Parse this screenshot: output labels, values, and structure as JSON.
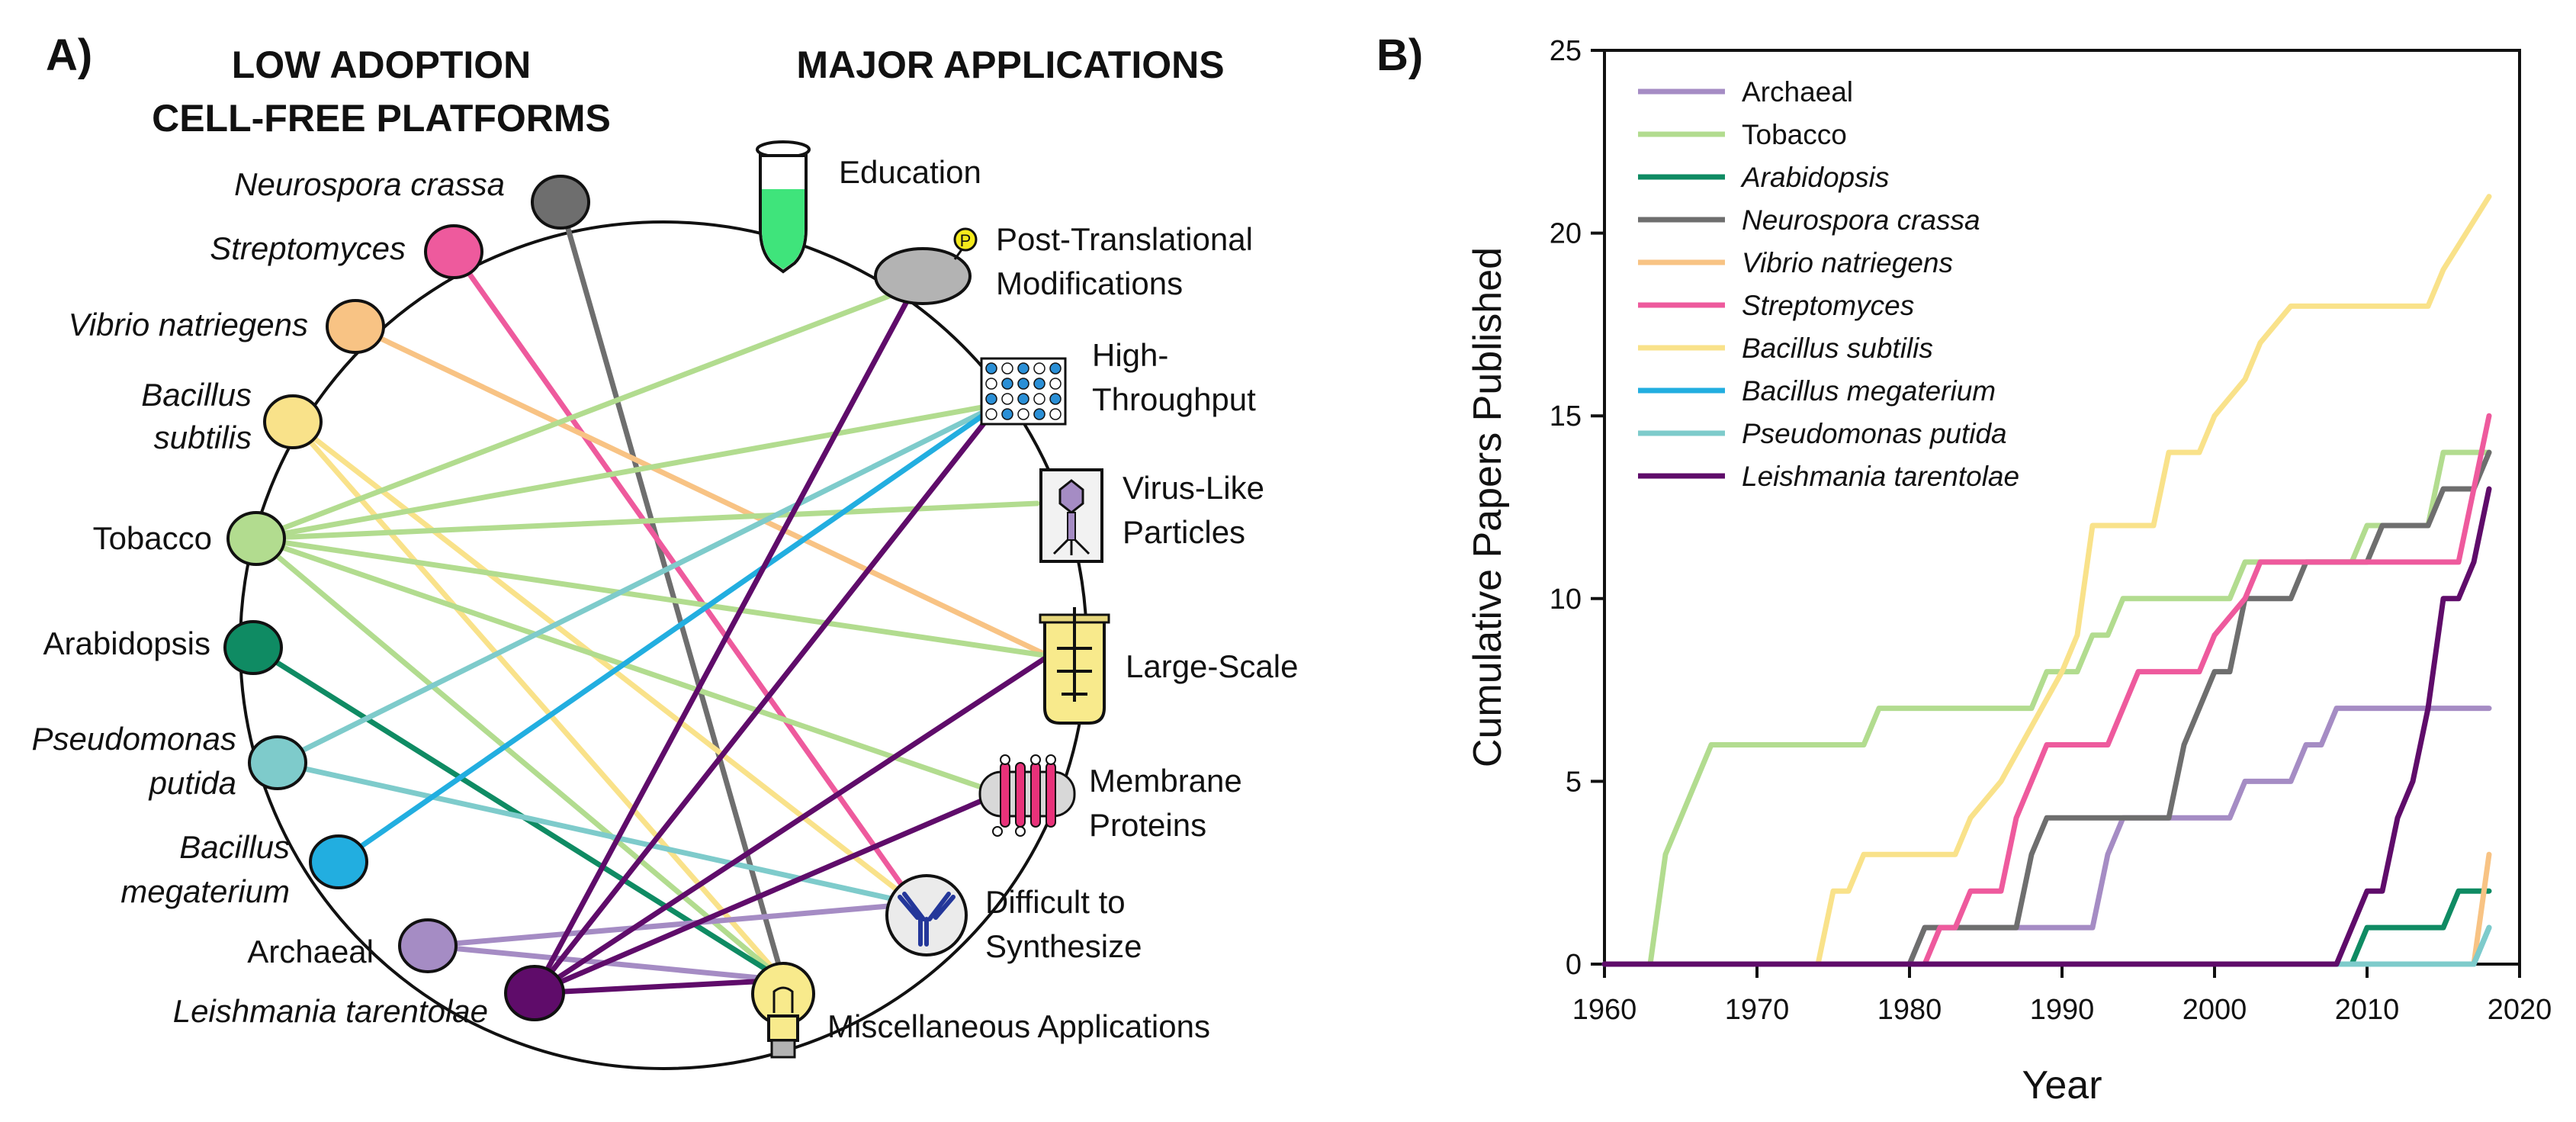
{
  "panel_a": {
    "label": "A)",
    "header_left": [
      "LOW ADOPTION",
      "CELL-FREE PLATFORMS"
    ],
    "header_right": "MAJOR APPLICATIONS",
    "platforms": [
      {
        "key": "neurospora",
        "lines": [
          "Neurospora crassa"
        ],
        "italic": true,
        "color": "#6e6e6e"
      },
      {
        "key": "streptomyces",
        "lines": [
          "Streptomyces"
        ],
        "italic": true,
        "color": "#ee5a9d"
      },
      {
        "key": "vibrio",
        "lines": [
          "Vibrio natriegens"
        ],
        "italic": true,
        "color": "#f8c384"
      },
      {
        "key": "bsubtilis",
        "lines": [
          "Bacillus",
          "subtilis"
        ],
        "italic": true,
        "color": "#f9e28a"
      },
      {
        "key": "tobacco",
        "lines": [
          "Tobacco"
        ],
        "italic": false,
        "color": "#b2dc8f"
      },
      {
        "key": "arabidopsis",
        "lines": [
          "Arabidopsis"
        ],
        "italic": false,
        "color": "#0f8b63"
      },
      {
        "key": "pputida",
        "lines": [
          "Pseudomonas",
          "putida"
        ],
        "italic": true,
        "color": "#7ecbcb"
      },
      {
        "key": "bmegaterium",
        "lines": [
          "Bacillus",
          "megaterium"
        ],
        "italic": true,
        "color": "#22aee0"
      },
      {
        "key": "archaeal",
        "lines": [
          "Archaeal"
        ],
        "italic": false,
        "color": "#a58cc4"
      },
      {
        "key": "leishmania",
        "lines": [
          "Leishmania tarentolae"
        ],
        "italic": true,
        "color": "#5f0c6a"
      }
    ],
    "applications": [
      {
        "key": "education",
        "lines": [
          "Education"
        ]
      },
      {
        "key": "ptm",
        "lines": [
          "Post-Translational",
          "Modifications"
        ]
      },
      {
        "key": "htp",
        "lines": [
          "High-",
          "Throughput"
        ]
      },
      {
        "key": "vlp",
        "lines": [
          "Virus-Like",
          "Particles"
        ]
      },
      {
        "key": "largescale",
        "lines": [
          "Large-Scale"
        ]
      },
      {
        "key": "membrane",
        "lines": [
          "Membrane",
          "Proteins"
        ]
      },
      {
        "key": "difficult",
        "lines": [
          "Difficult to",
          "Synthesize"
        ]
      },
      {
        "key": "misc",
        "lines": [
          "Miscellaneous Applications"
        ]
      }
    ],
    "ptm_badge": "P",
    "connections": [
      [
        "neurospora",
        "misc"
      ],
      [
        "streptomyces",
        "difficult"
      ],
      [
        "vibrio",
        "largescale"
      ],
      [
        "bsubtilis",
        "difficult"
      ],
      [
        "bsubtilis",
        "misc"
      ],
      [
        "tobacco",
        "ptm"
      ],
      [
        "tobacco",
        "htp"
      ],
      [
        "tobacco",
        "vlp"
      ],
      [
        "tobacco",
        "largescale"
      ],
      [
        "tobacco",
        "membrane"
      ],
      [
        "tobacco",
        "misc"
      ],
      [
        "arabidopsis",
        "misc"
      ],
      [
        "pputida",
        "htp"
      ],
      [
        "pputida",
        "difficult"
      ],
      [
        "bmegaterium",
        "htp"
      ],
      [
        "archaeal",
        "difficult"
      ],
      [
        "archaeal",
        "misc"
      ],
      [
        "leishmania",
        "ptm"
      ],
      [
        "leishmania",
        "htp"
      ],
      [
        "leishmania",
        "largescale"
      ],
      [
        "leishmania",
        "membrane"
      ],
      [
        "leishmania",
        "misc"
      ]
    ]
  },
  "panel_b": {
    "label": "B)"
  },
  "chart_data": {
    "type": "line",
    "title": "",
    "xlabel": "Year",
    "ylabel": "Cumulative Papers Published",
    "xlim": [
      1960,
      2020
    ],
    "ylim": [
      0,
      25
    ],
    "xticks": [
      1960,
      1970,
      1980,
      1990,
      2000,
      2010,
      2020
    ],
    "yticks": [
      0,
      5,
      10,
      15,
      20,
      25
    ],
    "legend_position": "top-left",
    "series": [
      {
        "name": "Archaeal",
        "italic": false,
        "color": "#a58cc4",
        "points": [
          [
            1960,
            0
          ],
          [
            1980,
            0
          ],
          [
            1981,
            1
          ],
          [
            1992,
            1
          ],
          [
            1993,
            3
          ],
          [
            1994,
            4
          ],
          [
            2001,
            4
          ],
          [
            2002,
            5
          ],
          [
            2005,
            5
          ],
          [
            2006,
            6
          ],
          [
            2007,
            6
          ],
          [
            2008,
            7
          ],
          [
            2018,
            7
          ]
        ]
      },
      {
        "name": "Tobacco",
        "italic": false,
        "color": "#b2dc8f",
        "points": [
          [
            1960,
            0
          ],
          [
            1963,
            0
          ],
          [
            1964,
            3
          ],
          [
            1965,
            4
          ],
          [
            1966,
            5
          ],
          [
            1967,
            6
          ],
          [
            1977,
            6
          ],
          [
            1978,
            7
          ],
          [
            1988,
            7
          ],
          [
            1989,
            8
          ],
          [
            1991,
            8
          ],
          [
            1992,
            9
          ],
          [
            1993,
            9
          ],
          [
            1994,
            10
          ],
          [
            2001,
            10
          ],
          [
            2002,
            11
          ],
          [
            2009,
            11
          ],
          [
            2010,
            12
          ],
          [
            2014,
            12
          ],
          [
            2015,
            14
          ],
          [
            2018,
            14
          ]
        ]
      },
      {
        "name": "Arabidopsis",
        "italic": true,
        "color": "#0f8b63",
        "points": [
          [
            1960,
            0
          ],
          [
            2009,
            0
          ],
          [
            2010,
            1
          ],
          [
            2015,
            1
          ],
          [
            2016,
            2
          ],
          [
            2018,
            2
          ]
        ]
      },
      {
        "name": "Neurospora crassa",
        "italic": true,
        "color": "#6e6e6e",
        "points": [
          [
            1960,
            0
          ],
          [
            1980,
            0
          ],
          [
            1981,
            1
          ],
          [
            1987,
            1
          ],
          [
            1988,
            3
          ],
          [
            1989,
            4
          ],
          [
            1997,
            4
          ],
          [
            1998,
            6
          ],
          [
            1999,
            7
          ],
          [
            2000,
            8
          ],
          [
            2001,
            8
          ],
          [
            2002,
            10
          ],
          [
            2005,
            10
          ],
          [
            2006,
            11
          ],
          [
            2010,
            11
          ],
          [
            2011,
            12
          ],
          [
            2014,
            12
          ],
          [
            2015,
            13
          ],
          [
            2017,
            13
          ],
          [
            2018,
            14
          ]
        ]
      },
      {
        "name": "Vibrio natriegens",
        "italic": true,
        "color": "#f8c384",
        "points": [
          [
            1960,
            0
          ],
          [
            2017,
            0
          ],
          [
            2018,
            3
          ]
        ]
      },
      {
        "name": "Streptomyces",
        "italic": true,
        "color": "#ee5a9d",
        "points": [
          [
            1960,
            0
          ],
          [
            1981,
            0
          ],
          [
            1982,
            1
          ],
          [
            1983,
            1
          ],
          [
            1984,
            2
          ],
          [
            1986,
            2
          ],
          [
            1987,
            4
          ],
          [
            1988,
            5
          ],
          [
            1989,
            6
          ],
          [
            1993,
            6
          ],
          [
            1994,
            7
          ],
          [
            1995,
            8
          ],
          [
            1999,
            8
          ],
          [
            2000,
            9
          ],
          [
            2002,
            10
          ],
          [
            2003,
            11
          ],
          [
            2016,
            11
          ],
          [
            2018,
            15
          ]
        ]
      },
      {
        "name": "Bacillus subtilis",
        "italic": true,
        "color": "#f9e28a",
        "points": [
          [
            1960,
            0
          ],
          [
            1974,
            0
          ],
          [
            1975,
            2
          ],
          [
            1976,
            2
          ],
          [
            1977,
            3
          ],
          [
            1983,
            3
          ],
          [
            1984,
            4
          ],
          [
            1986,
            5
          ],
          [
            1990,
            8
          ],
          [
            1991,
            9
          ],
          [
            1992,
            12
          ],
          [
            1996,
            12
          ],
          [
            1997,
            14
          ],
          [
            1999,
            14
          ],
          [
            2000,
            15
          ],
          [
            2002,
            16
          ],
          [
            2003,
            17
          ],
          [
            2005,
            18
          ],
          [
            2014,
            18
          ],
          [
            2015,
            19
          ],
          [
            2018,
            21
          ]
        ]
      },
      {
        "name": "Bacillus megaterium",
        "italic": true,
        "color": "#22aee0",
        "points": [
          [
            1960,
            0
          ],
          [
            2017,
            0
          ],
          [
            2018,
            1
          ]
        ]
      },
      {
        "name": "Pseudomonas putida",
        "italic": true,
        "color": "#7ecbcb",
        "points": [
          [
            1960,
            0
          ],
          [
            2017,
            0
          ],
          [
            2018,
            1
          ]
        ]
      },
      {
        "name": "Leishmania tarentolae",
        "italic": true,
        "color": "#5f0c6a",
        "points": [
          [
            1960,
            0
          ],
          [
            2008,
            0
          ],
          [
            2009,
            1
          ],
          [
            2010,
            2
          ],
          [
            2011,
            2
          ],
          [
            2012,
            4
          ],
          [
            2013,
            5
          ],
          [
            2014,
            7
          ],
          [
            2015,
            10
          ],
          [
            2016,
            10
          ],
          [
            2017,
            11
          ],
          [
            2018,
            13
          ]
        ]
      }
    ]
  }
}
